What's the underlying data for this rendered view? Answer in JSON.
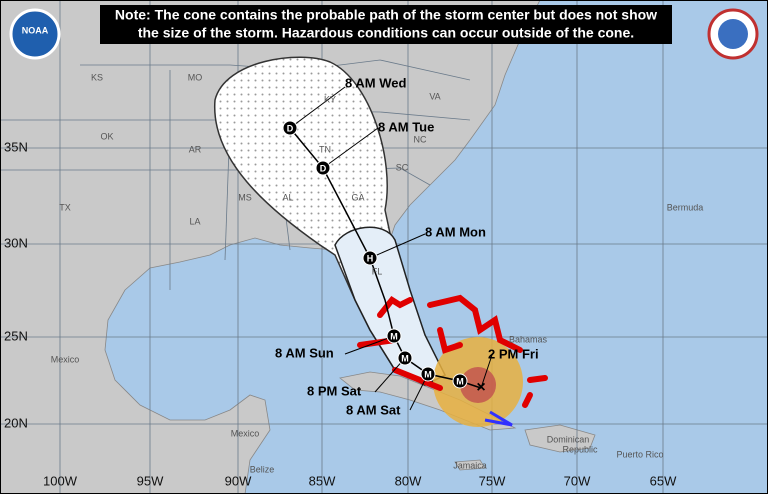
{
  "note": {
    "lines": [
      "Note: The cone contains the probable path of the storm center but does not show",
      "the size of the storm. Hazardous conditions can occur outside of the cone."
    ]
  },
  "logo": "NOAA",
  "latitudes": [
    "35N",
    "30N",
    "25N",
    "20N"
  ],
  "longitudes": [
    "100W",
    "95W",
    "90W",
    "85W",
    "80W",
    "75W",
    "70W",
    "65W"
  ],
  "states": [
    "KS",
    "MO",
    "KY",
    "VA",
    "OK",
    "AR",
    "TN",
    "NC",
    "SC",
    "TX",
    "MS",
    "AL",
    "GA",
    "LA",
    "FL"
  ],
  "places": [
    "Mexico",
    "Mexico",
    "Belize",
    "Bermuda",
    "Bahamas",
    "Jamaica",
    "Dominican",
    "Republic",
    "Puerto Rico"
  ],
  "time_labels": [
    "8 AM Wed",
    "8 AM Tue",
    "8 AM Mon",
    "8 AM Sun",
    "2 PM Fri",
    "8 PM Sat",
    "8 AM Sat"
  ],
  "track_symbols": [
    "D",
    "D",
    "H",
    "M",
    "M",
    "M",
    "M"
  ]
}
